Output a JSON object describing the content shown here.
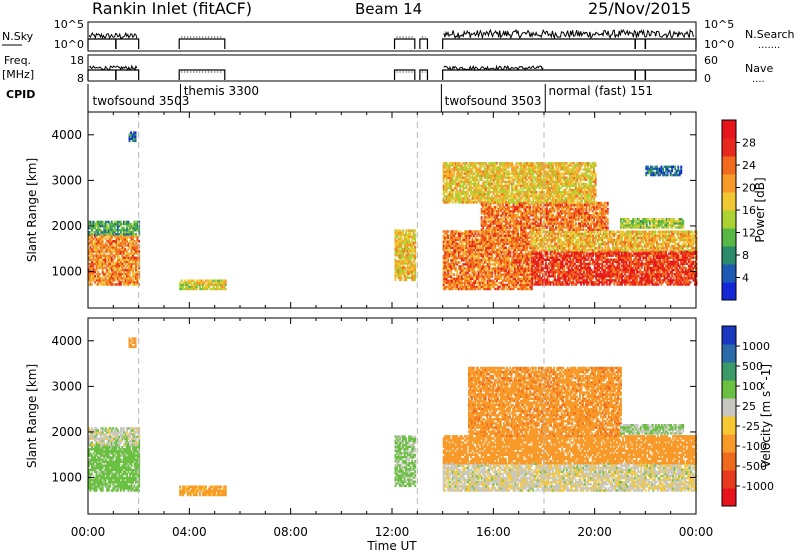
{
  "header": {
    "title": "Rankin Inlet (fitACF)",
    "beam": "Beam 14",
    "date": "25/Nov/2015"
  },
  "status_panels": {
    "nsky": {
      "left_label": "N.Sky",
      "left_ticks": [
        "10^5",
        "10^0"
      ],
      "right_label": "N.Search",
      "right_ticks": [
        "10^5",
        "10^0"
      ],
      "right_legend": "......."
    },
    "freq": {
      "left_label_1": "Freq.",
      "left_label_2": "[MHz]",
      "left_ticks": [
        "18",
        "8"
      ],
      "right_label": "Nave",
      "right_ticks": [
        "60",
        "0"
      ],
      "right_legend": "...."
    },
    "cpid": {
      "label": "CPID",
      "segments": [
        {
          "name": "twofsound",
          "id": "3503",
          "start_hour": 0.1
        },
        {
          "name": "themis",
          "id": "3300",
          "start_hour": 3.7
        },
        {
          "name": "twofsound",
          "id": "3503",
          "start_hour": 14.0
        },
        {
          "name": "normal (fast)",
          "id": "151",
          "start_hour": 18.1
        }
      ]
    },
    "schedule_blocks": [
      {
        "start": 0.0,
        "end": 2.0
      },
      {
        "start": 3.6,
        "end": 5.4
      },
      {
        "start": 12.1,
        "end": 12.9
      },
      {
        "start": 13.1,
        "end": 13.4
      },
      {
        "start": 14.0,
        "end": 24.0
      }
    ]
  },
  "chart_data": [
    {
      "type": "heatmap",
      "panel": "power",
      "title": "",
      "xlabel": "Time UT",
      "ylabel": "Slant Range [km]",
      "xlim": [
        0,
        24
      ],
      "ylim": [
        200,
        4500
      ],
      "x_ticks": [
        "00:00",
        "04:00",
        "08:00",
        "12:00",
        "16:00",
        "20:00",
        "00:00"
      ],
      "y_ticks": [
        1000,
        2000,
        3000,
        4000
      ],
      "colorbar": {
        "label": "Power [dB]",
        "ticks": [
          4,
          8,
          12,
          16,
          20,
          24,
          28
        ],
        "colors": [
          "#1428d8",
          "#1e5ab4",
          "#2a8a6c",
          "#58b846",
          "#aad232",
          "#f0c832",
          "#f89a2a",
          "#f26a1c",
          "#e8281c",
          "#e8141c"
        ]
      },
      "regions": [
        {
          "t0": 0.0,
          "t1": 2.0,
          "r0": 700,
          "r1": 1800,
          "value": 22
        },
        {
          "t0": 0.0,
          "t1": 2.0,
          "r0": 1800,
          "r1": 2100,
          "value": 10
        },
        {
          "t0": 1.6,
          "t1": 1.9,
          "r0": 3850,
          "r1": 4050,
          "value": 6
        },
        {
          "t0": 3.6,
          "t1": 5.4,
          "r0": 600,
          "r1": 800,
          "value": 16
        },
        {
          "t0": 12.1,
          "t1": 12.9,
          "r0": 800,
          "r1": 1900,
          "value": 18
        },
        {
          "t0": 14.0,
          "t1": 17.5,
          "r0": 600,
          "r1": 1900,
          "value": 23
        },
        {
          "t0": 17.5,
          "t1": 24.0,
          "r0": 700,
          "r1": 1450,
          "value": 27
        },
        {
          "t0": 17.5,
          "t1": 24.0,
          "r0": 1450,
          "r1": 1900,
          "value": 19
        },
        {
          "t0": 15.5,
          "t1": 20.5,
          "r0": 1900,
          "r1": 2500,
          "value": 23
        },
        {
          "t0": 14.0,
          "t1": 20.0,
          "r0": 2500,
          "r1": 3400,
          "value": 18
        },
        {
          "t0": 21.0,
          "t1": 23.5,
          "r0": 1950,
          "r1": 2150,
          "value": 14
        },
        {
          "t0": 22.0,
          "t1": 23.4,
          "r0": 3100,
          "r1": 3300,
          "value": 6
        }
      ],
      "boundaries_hours": [
        2.0,
        13.0,
        18.0
      ]
    },
    {
      "type": "heatmap",
      "panel": "velocity",
      "title": "",
      "xlabel": "Time UT",
      "ylabel": "Slant Range [km]",
      "xlim": [
        0,
        24
      ],
      "ylim": [
        200,
        4500
      ],
      "x_ticks": [
        "00:00",
        "04:00",
        "08:00",
        "12:00",
        "16:00",
        "20:00",
        "00:00"
      ],
      "y_ticks": [
        1000,
        2000,
        3000,
        4000
      ],
      "colorbar": {
        "label": "Velocity [m s^-1]",
        "ticks": [
          "1000",
          "500",
          "100",
          "25",
          "-25",
          "-100",
          "-500",
          "-1000"
        ],
        "colors": [
          "#1838c0",
          "#2a6aa8",
          "#3a9a6a",
          "#6ac040",
          "#c8c8c0",
          "#f8c832",
          "#f89a2a",
          "#f06a1e",
          "#e83a1c",
          "#e8141c"
        ]
      },
      "regions": [
        {
          "t0": 0.0,
          "t1": 2.0,
          "r0": 700,
          "r1": 1700,
          "value": 60
        },
        {
          "t0": 0.0,
          "t1": 2.0,
          "r0": 1700,
          "r1": 2100,
          "value": 5
        },
        {
          "t0": 1.6,
          "t1": 1.9,
          "r0": 3850,
          "r1": 4050,
          "value": -300
        },
        {
          "t0": 3.6,
          "t1": 5.4,
          "r0": 600,
          "r1": 800,
          "value": -150
        },
        {
          "t0": 12.1,
          "t1": 12.9,
          "r0": 800,
          "r1": 1900,
          "value": 40
        },
        {
          "t0": 14.0,
          "t1": 24.0,
          "r0": 700,
          "r1": 1300,
          "value": -10
        },
        {
          "t0": 14.0,
          "t1": 24.0,
          "r0": 1300,
          "r1": 1900,
          "value": -300
        },
        {
          "t0": 15.0,
          "t1": 21.0,
          "r0": 1900,
          "r1": 3400,
          "value": -350
        },
        {
          "t0": 21.0,
          "t1": 23.5,
          "r0": 1950,
          "r1": 2150,
          "value": 30
        }
      ],
      "boundaries_hours": [
        2.0,
        13.0,
        18.0
      ]
    }
  ]
}
